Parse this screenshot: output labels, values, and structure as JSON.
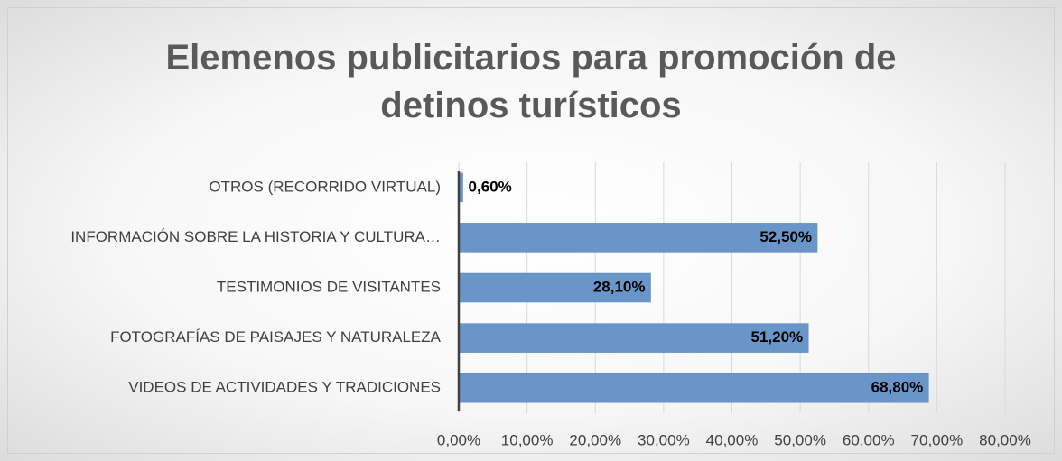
{
  "chart_data": {
    "type": "barh",
    "title": "Elemenos publicitarios para promoción de detinos turísticos",
    "categories": [
      "OTROS (RECORRIDO VIRTUAL)",
      "INFORMACIÓN SOBRE LA HISTORIA Y CULTURA…",
      "TESTIMONIOS DE VISITANTES",
      "FOTOGRAFÍAS DE PAISAJES Y NATURALEZA",
      "VIDEOS DE ACTIVIDADES Y TRADICIONES"
    ],
    "values": [
      0.6,
      52.5,
      28.1,
      51.2,
      68.8
    ],
    "value_labels": [
      "0,60%",
      "52,50%",
      "28,10%",
      "51,20%",
      "68,80%"
    ],
    "color": "#6a95c8",
    "xlim": [
      0,
      80
    ],
    "xticks": [
      {
        "value": 0,
        "label": "0,00%"
      },
      {
        "value": 10,
        "label": "10,00%"
      },
      {
        "value": 20,
        "label": "20,00%"
      },
      {
        "value": 30,
        "label": "30,00%"
      },
      {
        "value": 40,
        "label": "40,00%"
      },
      {
        "value": 50,
        "label": "50,00%"
      },
      {
        "value": 60,
        "label": "60,00%"
      },
      {
        "value": 70,
        "label": "70,00%"
      },
      {
        "value": 80,
        "label": "80,00%"
      }
    ],
    "grid": true
  }
}
